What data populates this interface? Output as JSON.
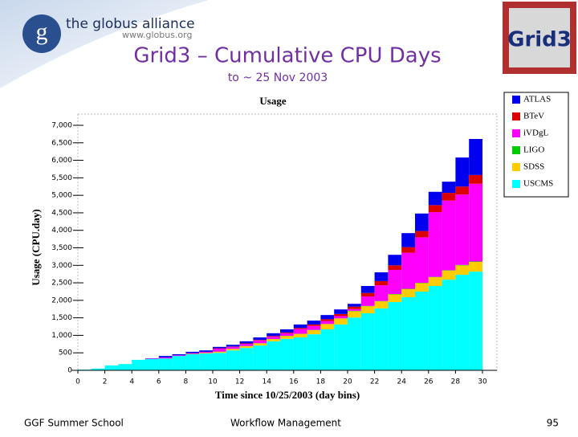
{
  "logos": {
    "globus_name": "the globus alliance",
    "globus_url": "www.globus.org",
    "grid_logo": "Grid3"
  },
  "slide": {
    "title": "Grid3 – Cumulative CPU Days",
    "subtitle": "to ~ 25 Nov 2003",
    "footer_left": "GGF Summer School",
    "footer_center": "Workflow Management",
    "page_number": "95"
  },
  "chart_data": {
    "type": "histogram",
    "stacked": true,
    "title": "Usage",
    "x_label": "Time since 10/25/2003 (day bins)",
    "y_label": "Usage (CPU.day)",
    "bins": [
      0,
      1,
      2,
      3,
      4,
      5,
      6,
      7,
      8,
      9,
      10,
      11,
      12,
      13,
      14,
      15,
      16,
      17,
      18,
      19,
      20,
      21,
      22,
      23,
      24,
      25,
      26,
      27,
      28,
      29,
      30
    ],
    "xlim": [
      0,
      30
    ],
    "xticks": [
      0,
      2,
      4,
      6,
      8,
      10,
      12,
      14,
      16,
      18,
      20,
      22,
      24,
      26,
      28,
      30
    ],
    "ylim": [
      0,
      7000
    ],
    "yticks": [
      0,
      500,
      {
        "value": 1000,
        "label": "1,000"
      },
      {
        "value": 1500,
        "label": "1,500"
      },
      {
        "value": 2000,
        "label": "2,000"
      },
      {
        "value": 2500,
        "label": "2,500"
      },
      {
        "value": 3000,
        "label": "3,000"
      },
      {
        "value": 3500,
        "label": "3,500"
      },
      {
        "value": 4000,
        "label": "4,000"
      },
      {
        "value": 4500,
        "label": "4,500"
      },
      {
        "value": 5000,
        "label": "5,000"
      },
      {
        "value": 5500,
        "label": "5,500"
      },
      {
        "value": 6000,
        "label": "6,000"
      },
      {
        "value": 6500,
        "label": "6,500"
      },
      {
        "value": 7000,
        "label": "7,000"
      }
    ],
    "grid": false,
    "legend": "right",
    "series": [
      {
        "name": "USCMS",
        "color": "#00ffff",
        "values": [
          20,
          50,
          140,
          180,
          300,
          320,
          340,
          410,
          460,
          480,
          500,
          570,
          640,
          710,
          830,
          900,
          940,
          1030,
          1170,
          1310,
          1510,
          1630,
          1770,
          1950,
          2090,
          2250,
          2410,
          2590,
          2730,
          2820
        ]
      },
      {
        "name": "SDSS",
        "color": "#ffcc00",
        "values": [
          0,
          0,
          0,
          0,
          0,
          0,
          0,
          0,
          10,
          20,
          30,
          40,
          50,
          60,
          60,
          80,
          100,
          120,
          150,
          170,
          180,
          200,
          200,
          220,
          230,
          240,
          250,
          260,
          270,
          280
        ]
      },
      {
        "name": "LIGO",
        "color": "#00cc00",
        "values": [
          0,
          0,
          0,
          0,
          0,
          0,
          0,
          0,
          0,
          0,
          5,
          5,
          5,
          5,
          5,
          5,
          5,
          5,
          5,
          5,
          10,
          10,
          10,
          10,
          10,
          10,
          10,
          10,
          10,
          10
        ]
      },
      {
        "name": "iVDgL",
        "color": "#ff00ff",
        "values": [
          0,
          0,
          0,
          0,
          0,
          10,
          30,
          20,
          20,
          30,
          85,
          55,
          60,
          80,
          65,
          75,
          135,
          115,
          85,
          65,
          50,
          270,
          450,
          690,
          1030,
          1300,
          1850,
          1990,
          2010,
          2220
        ]
      },
      {
        "name": "BTeV",
        "color": "#dd0000",
        "values": [
          0,
          0,
          0,
          0,
          0,
          0,
          0,
          0,
          0,
          0,
          10,
          10,
          15,
          15,
          20,
          20,
          30,
          40,
          50,
          60,
          70,
          100,
          120,
          130,
          160,
          180,
          200,
          220,
          230,
          250
        ]
      },
      {
        "name": "ATLAS",
        "color": "#0000ee",
        "values": [
          0,
          0,
          0,
          0,
          0,
          10,
          40,
          30,
          40,
          40,
          40,
          50,
          60,
          70,
          80,
          90,
          100,
          110,
          120,
          130,
          80,
          200,
          250,
          300,
          400,
          500,
          380,
          320,
          830,
          1030
        ]
      }
    ]
  }
}
